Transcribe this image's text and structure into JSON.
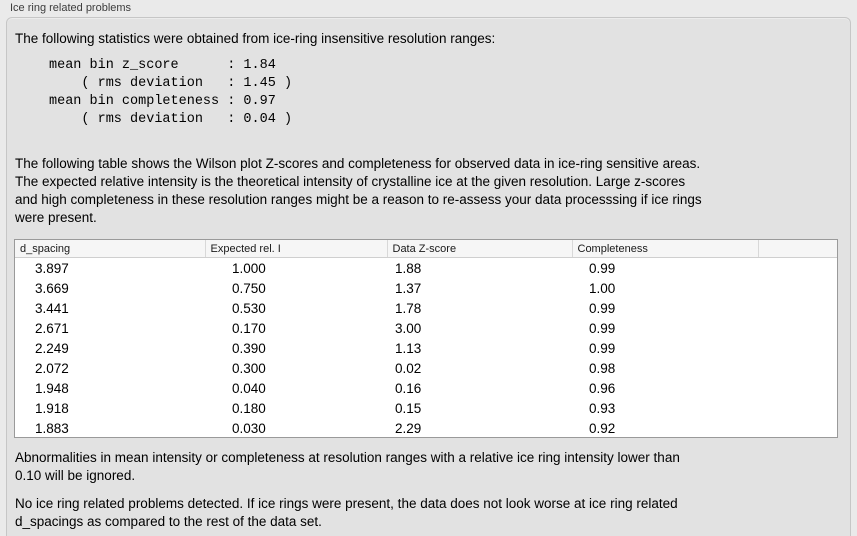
{
  "panel": {
    "title": "Ice ring related problems"
  },
  "intro": "The following statistics were obtained from ice-ring insensitive resolution ranges:",
  "stats": {
    "text": "mean bin z_score      : 1.84\n    ( rms deviation   : 1.45 )\nmean bin completeness : 0.97\n    ( rms deviation   : 0.04 )",
    "mean_bin_z_score": "1.84",
    "z_score_rms_deviation": "1.45",
    "mean_bin_completeness": "0.97",
    "completeness_rms_deviation": "0.04"
  },
  "description": "The following table shows the Wilson plot Z-scores and completeness for observed data in ice-ring sensitive areas.\nThe expected relative intensity is the theoretical intensity of crystalline ice at the given resolution. Large z-scores\nand high completeness in these resolution ranges might be a reason to re-assess your data processsing if ice rings\nwere present.",
  "table": {
    "columns": [
      "d_spacing",
      "Expected rel. I",
      "Data Z-score",
      "Completeness"
    ],
    "rows": [
      [
        "3.897",
        "1.000",
        "1.88",
        "0.99"
      ],
      [
        "3.669",
        "0.750",
        "1.37",
        "1.00"
      ],
      [
        "3.441",
        "0.530",
        "1.78",
        "0.99"
      ],
      [
        "2.671",
        "0.170",
        "3.00",
        "0.99"
      ],
      [
        "2.249",
        "0.390",
        "1.13",
        "0.99"
      ],
      [
        "2.072",
        "0.300",
        "0.02",
        "0.98"
      ],
      [
        "1.948",
        "0.040",
        "0.16",
        "0.96"
      ],
      [
        "1.918",
        "0.180",
        "0.15",
        "0.93"
      ],
      [
        "1.883",
        "0.030",
        "2.29",
        "0.92"
      ]
    ]
  },
  "note_ignore": "Abnormalities in mean intensity or completeness at resolution ranges with a relative ice ring intensity lower than\n0.10 will be ignored.",
  "conclusion": "No ice ring related problems detected. If ice rings were present, the data does not look worse at ice ring related\nd_spacings as compared to the rest of the data set.",
  "colors": {
    "page_bg": "#eaeaea",
    "panel_bg": "#e2e2e2",
    "table_border": "#9a9a9a",
    "table_header_bg": "#f6f6f6"
  }
}
